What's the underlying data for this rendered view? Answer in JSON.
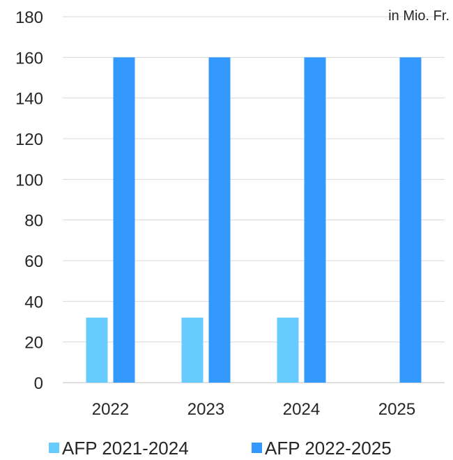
{
  "chart_data": {
    "type": "bar",
    "title": "",
    "unit_label": "in Mio. Fr.",
    "xlabel": "",
    "ylabel": "",
    "categories": [
      "2022",
      "2023",
      "2024",
      "2025"
    ],
    "series": [
      {
        "name": "AFP 2021-2024",
        "color": "#66CCFF",
        "values": [
          32,
          32,
          32,
          null
        ]
      },
      {
        "name": "AFP 2022-2025",
        "color": "#3399FF",
        "values": [
          160,
          160,
          160,
          160
        ]
      }
    ],
    "ylim": [
      0,
      180
    ],
    "yticks": [
      0,
      20,
      40,
      60,
      80,
      100,
      120,
      140,
      160,
      180
    ],
    "grid": true,
    "legend_position": "bottom"
  }
}
